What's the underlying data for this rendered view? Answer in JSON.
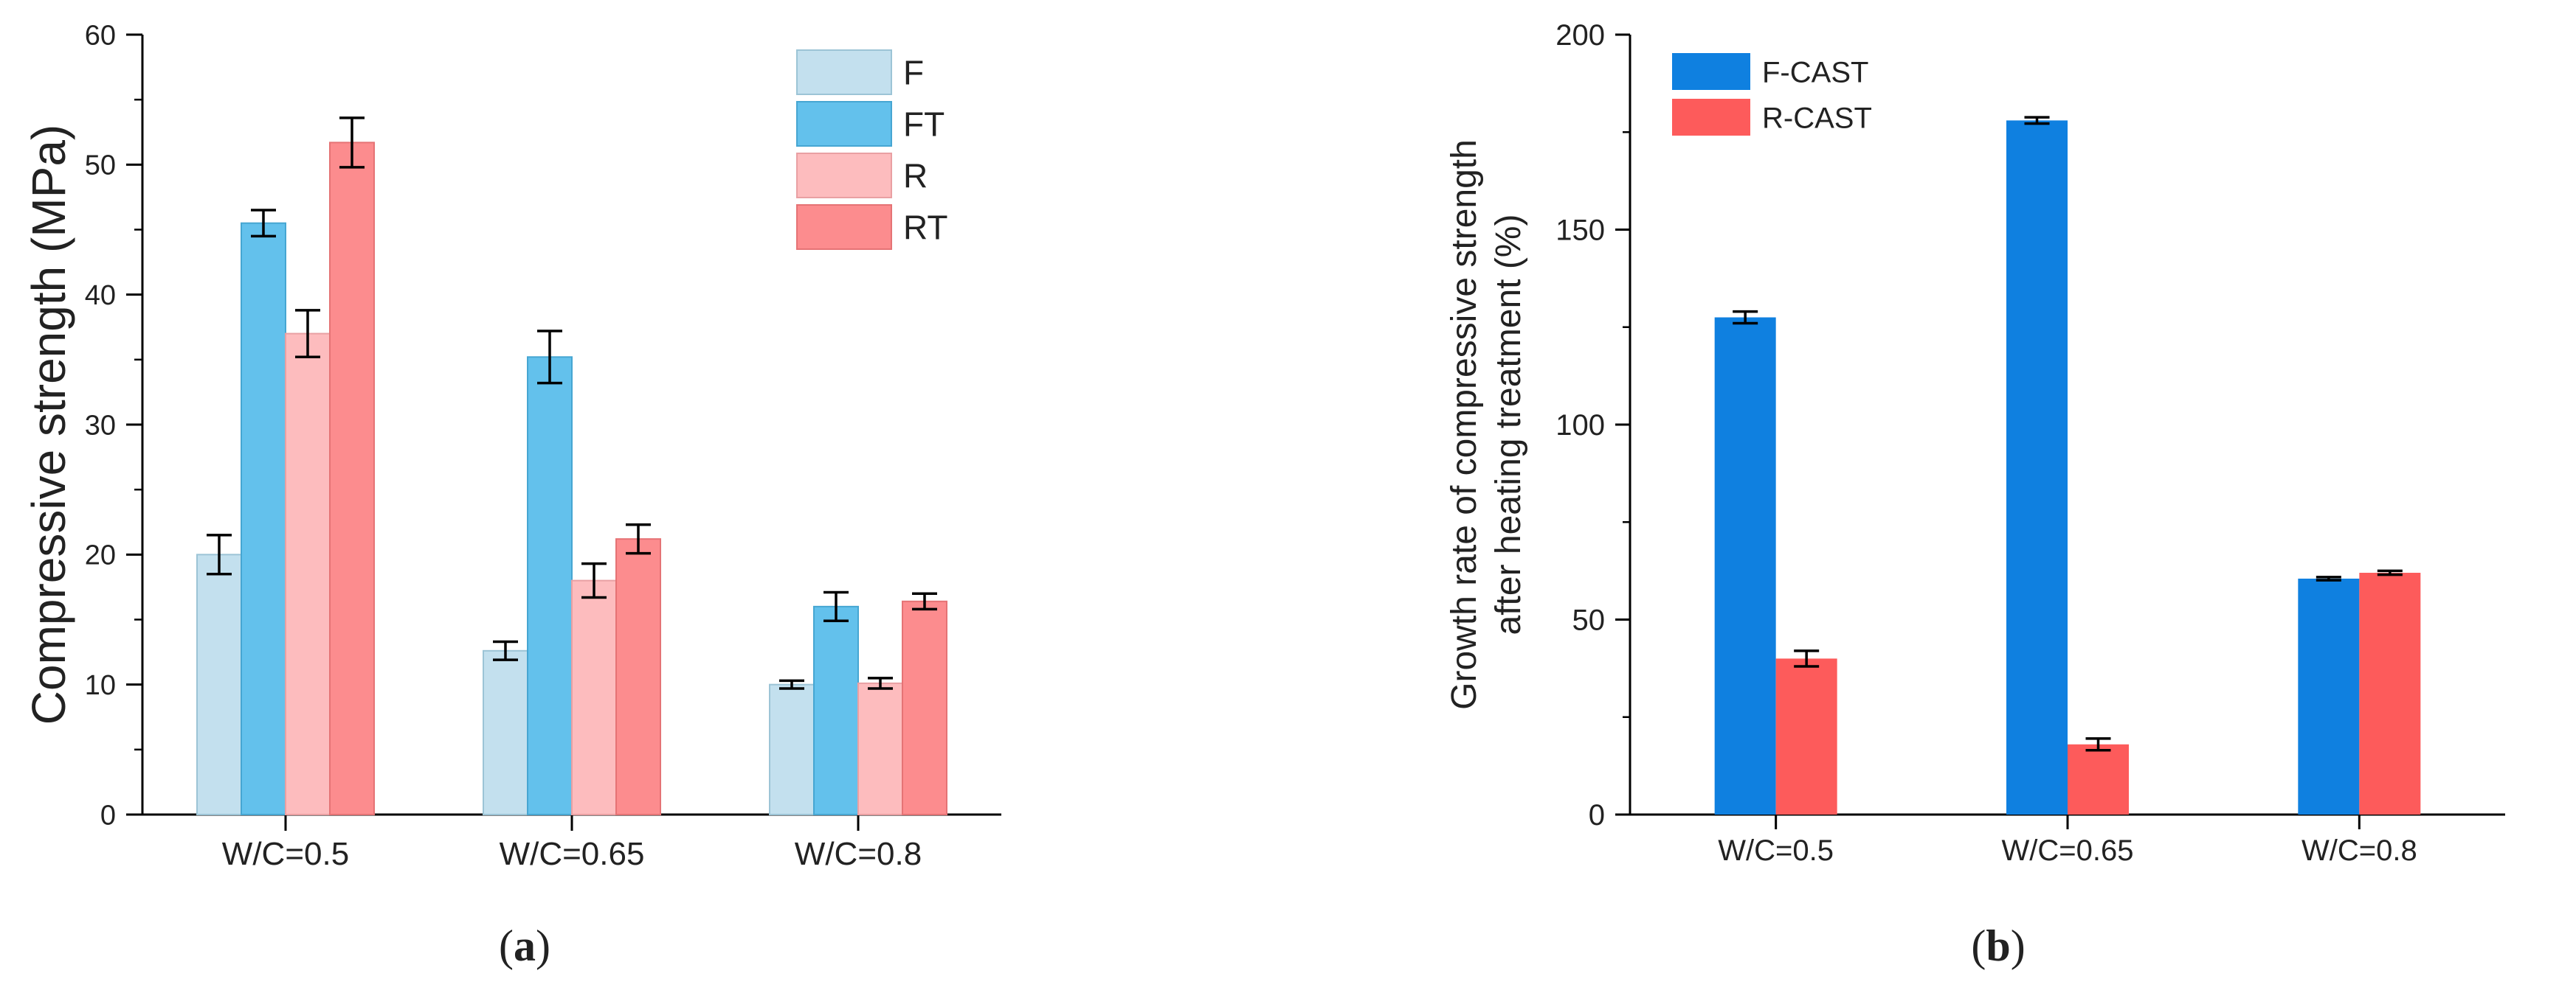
{
  "chart_data": [
    {
      "type": "bar",
      "panel": "(a)",
      "panel_letter": "a",
      "ylabel": "Compressive strength (MPa)",
      "xlabel": "",
      "ylim": [
        0,
        60
      ],
      "yticks": [
        0,
        10,
        20,
        30,
        40,
        50,
        60
      ],
      "categories": [
        "W/C=0.5",
        "W/C=0.65",
        "W/C=0.8"
      ],
      "legend_position": "top-right",
      "series": [
        {
          "name": "F",
          "color": "#c3e0ee",
          "edge": "#9cc4d6",
          "values": [
            20.0,
            12.6,
            10.0
          ],
          "errors": [
            1.5,
            0.7,
            0.3
          ]
        },
        {
          "name": "FT",
          "color": "#63c1ec",
          "edge": "#46a6d2",
          "values": [
            45.5,
            35.2,
            16.0
          ],
          "errors": [
            1.0,
            2.0,
            1.1
          ]
        },
        {
          "name": "R",
          "color": "#fdbcbe",
          "edge": "#e9a0a3",
          "values": [
            37.0,
            18.0,
            10.1
          ],
          "errors": [
            1.8,
            1.3,
            0.4
          ]
        },
        {
          "name": "RT",
          "color": "#fc8c8e",
          "edge": "#e57375",
          "values": [
            51.7,
            21.2,
            16.4
          ],
          "errors": [
            1.9,
            1.1,
            0.6
          ]
        }
      ]
    },
    {
      "type": "bar",
      "panel": "(b)",
      "panel_letter": "b",
      "ylabel_lines": [
        "Growth rate of compressive strength",
        "after heating treatment (%)"
      ],
      "xlabel": "",
      "ylim": [
        0,
        200
      ],
      "yticks": [
        0,
        50,
        100,
        150,
        200
      ],
      "categories": [
        "W/C=0.5",
        "W/C=0.65",
        "W/C=0.8"
      ],
      "legend_position": "top-left",
      "series": [
        {
          "name": "F-CAST",
          "color": "#0f80e0",
          "values": [
            127.5,
            178.0,
            60.5
          ],
          "errors": [
            1.5,
            0.8,
            0.4
          ]
        },
        {
          "name": "R-CAST",
          "color": "#fd5b5b",
          "values": [
            40.0,
            18.0,
            62.0
          ],
          "errors": [
            2.0,
            1.5,
            0.5
          ]
        }
      ]
    }
  ]
}
